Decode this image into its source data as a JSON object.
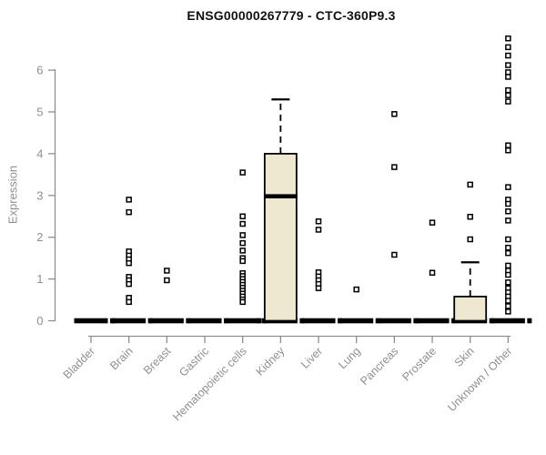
{
  "chart_data": {
    "type": "boxplot",
    "title": "ENSG00000267779 - CTC-360P9.3",
    "ylabel": "Expression",
    "xlabel": "",
    "yticks": [
      0,
      1,
      2,
      3,
      4,
      5,
      6
    ],
    "ylim": [
      0,
      6.9
    ],
    "grid": false,
    "legend": "none",
    "axis_color": "#8f8f8f",
    "box_fill": "#eee8d0",
    "box_stroke": "#000000",
    "outlier_marker": "open-square",
    "categories": [
      "Bladder",
      "Brain",
      "Breast",
      "Gastric",
      "Hematopoietic cells",
      "Kidney",
      "Liver",
      "Lung",
      "Pancreas",
      "Prostate",
      "Skin",
      "Unknown / Other"
    ],
    "series": [
      {
        "name": "Bladder",
        "q1": 0,
        "median": 0,
        "q3": 0,
        "whisker_high": 0,
        "zero_markers": [
          "right"
        ],
        "outliers": []
      },
      {
        "name": "Brain",
        "q1": 0,
        "median": 0,
        "q3": 0,
        "whisker_high": 0,
        "zero_markers": [
          "right"
        ],
        "outliers": [
          2.9,
          2.6,
          1.66,
          1.56,
          1.47,
          1.38,
          1.05,
          0.97,
          0.88,
          0.55,
          0.45
        ]
      },
      {
        "name": "Breast",
        "q1": 0,
        "median": 0,
        "q3": 0,
        "whisker_high": 0,
        "zero_markers": [
          "right"
        ],
        "outliers": [
          1.2,
          0.97
        ]
      },
      {
        "name": "Gastric",
        "q1": 0,
        "median": 0,
        "q3": 0,
        "whisker_high": 0,
        "zero_markers": [
          "right"
        ],
        "outliers": []
      },
      {
        "name": "Hematopoietic cells",
        "q1": 0,
        "median": 0,
        "q3": 0,
        "whisker_high": 0,
        "zero_markers": [
          "right"
        ],
        "outliers": [
          3.55,
          2.5,
          2.32,
          2.05,
          1.86,
          1.68,
          1.5,
          1.43,
          1.14,
          1.07,
          1.0,
          0.93,
          0.86,
          0.79,
          0.72,
          0.65,
          0.58,
          0.51,
          0.45
        ]
      },
      {
        "name": "Kidney",
        "q1": 0,
        "median": 2.98,
        "q3": 4.0,
        "whisker_high": 5.3,
        "zero_markers": [
          "left",
          "right"
        ],
        "outliers": []
      },
      {
        "name": "Liver",
        "q1": 0,
        "median": 0,
        "q3": 0,
        "whisker_high": 0,
        "zero_markers": [
          "right"
        ],
        "outliers": [
          2.38,
          2.18,
          1.16,
          1.06,
          0.97,
          0.88,
          0.78
        ]
      },
      {
        "name": "Lung",
        "q1": 0,
        "median": 0,
        "q3": 0,
        "whisker_high": 0,
        "zero_markers": [
          "right"
        ],
        "outliers": [
          0.75
        ]
      },
      {
        "name": "Pancreas",
        "q1": 0,
        "median": 0,
        "q3": 0,
        "whisker_high": 0,
        "zero_markers": [
          "right"
        ],
        "outliers": [
          4.95,
          3.68,
          1.58
        ]
      },
      {
        "name": "Prostate",
        "q1": 0,
        "median": 0,
        "q3": 0,
        "whisker_high": 0,
        "zero_markers": [
          "right"
        ],
        "outliers": [
          2.35,
          1.15
        ]
      },
      {
        "name": "Skin",
        "q1": 0,
        "median": 0,
        "q3": 0.58,
        "whisker_high": 1.4,
        "zero_markers": [
          "right"
        ],
        "outliers": [
          3.26,
          2.49,
          1.95
        ]
      },
      {
        "name": "Unknown / Other",
        "q1": 0,
        "median": 0,
        "q3": 0,
        "whisker_high": 0,
        "zero_markers": [
          "right"
        ],
        "outliers": [
          6.76,
          6.55,
          6.35,
          6.12,
          5.95,
          5.84,
          5.52,
          5.4,
          5.25,
          4.2,
          4.08,
          3.2,
          2.9,
          2.8,
          2.62,
          2.4,
          1.95,
          1.75,
          1.62,
          1.32,
          1.2,
          1.1,
          0.92,
          0.78,
          0.68,
          0.58,
          0.48,
          0.35,
          0.22
        ]
      }
    ]
  }
}
